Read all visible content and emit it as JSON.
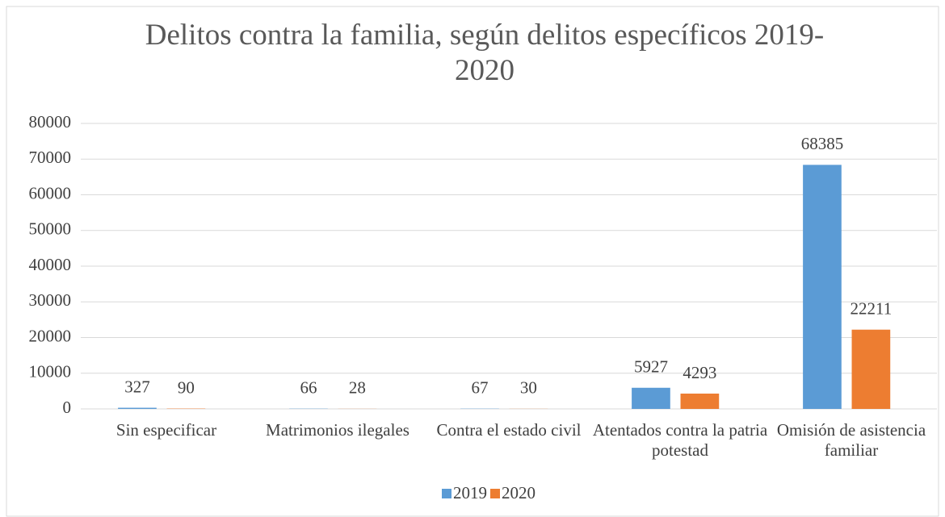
{
  "chart_data": {
    "type": "bar",
    "title": "Delitos contra la familia, según delitos específicos 2019-2020",
    "categories": [
      "Sin especificar",
      "Matrimonios ilegales",
      "Contra el estado civil",
      "Atentados contra la patria potestad",
      "Omisión de asistencia familiar"
    ],
    "series": [
      {
        "name": "2019",
        "color": "#5b9bd5",
        "values": [
          327,
          66,
          67,
          5927,
          68385
        ]
      },
      {
        "name": "2020",
        "color": "#ed7d31",
        "values": [
          90,
          28,
          30,
          4293,
          22211
        ]
      }
    ],
    "ylim": [
      0,
      80000
    ],
    "yticks": [
      0,
      10000,
      20000,
      30000,
      40000,
      50000,
      60000,
      70000,
      80000
    ],
    "grid": true,
    "legend": "bottom"
  }
}
